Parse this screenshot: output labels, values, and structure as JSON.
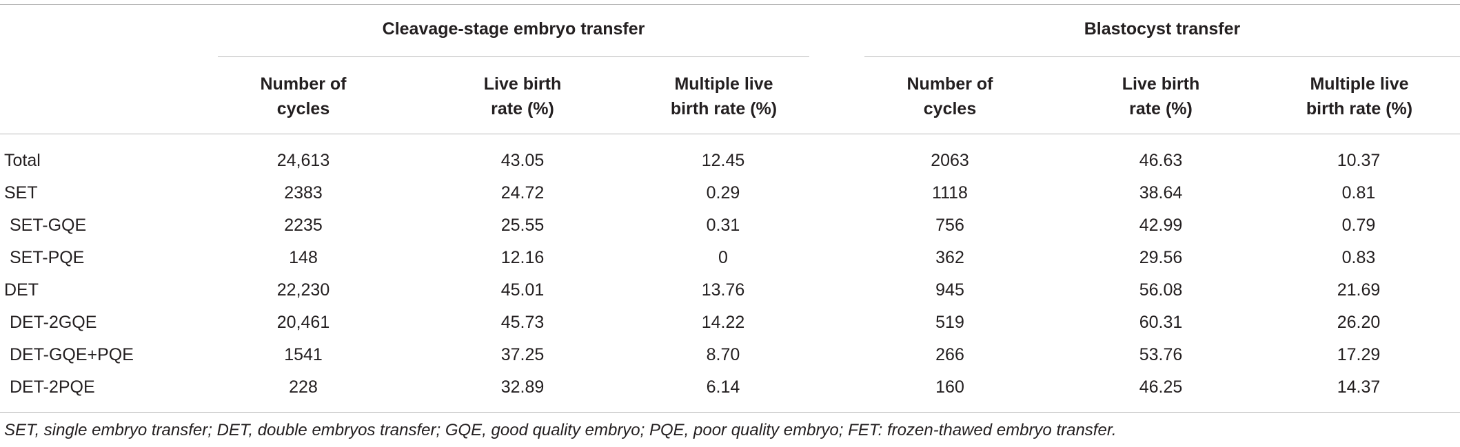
{
  "table": {
    "group_headers": {
      "cleavage": "Cleavage-stage embryo transfer",
      "blastocyst": "Blastocyst transfer"
    },
    "column_headers": [
      {
        "line1": "Number of",
        "line2": "cycles"
      },
      {
        "line1": "Live birth",
        "line2": "rate (%)"
      },
      {
        "line1": "Multiple live",
        "line2": "birth rate (%)"
      },
      {
        "line1": "Number of",
        "line2": "cycles"
      },
      {
        "line1": "Live birth",
        "line2": "rate (%)"
      },
      {
        "line1": "Multiple live",
        "line2": "birth rate (%)"
      }
    ],
    "rows": [
      {
        "label": "Total",
        "cells": [
          "24,613",
          "43.05",
          "12.45",
          "2063",
          "46.63",
          "10.37"
        ]
      },
      {
        "label": "SET",
        "cells": [
          "2383",
          "24.72",
          "0.29",
          "1118",
          "38.64",
          "0.81"
        ]
      },
      {
        "label": "SET-GQE",
        "cells": [
          "2235",
          "25.55",
          "0.31",
          "756",
          "42.99",
          "0.79"
        ]
      },
      {
        "label": "SET-PQE",
        "cells": [
          "148",
          "12.16",
          "0",
          "362",
          "29.56",
          "0.83"
        ]
      },
      {
        "label": "DET",
        "cells": [
          "22,230",
          "45.01",
          "13.76",
          "945",
          "56.08",
          "21.69"
        ]
      },
      {
        "label": "DET-2GQE",
        "cells": [
          "20,461",
          "45.73",
          "14.22",
          "519",
          "60.31",
          "26.20"
        ]
      },
      {
        "label": "DET-GQE+PQE",
        "cells": [
          "1541",
          "37.25",
          "8.70",
          "266",
          "53.76",
          "17.29"
        ]
      },
      {
        "label": "DET-2PQE",
        "cells": [
          "228",
          "32.89",
          "6.14",
          "160",
          "46.25",
          "14.37"
        ]
      }
    ],
    "footnote": "SET, single embryo transfer; DET, double embryos transfer; GQE, good quality embryo; PQE, poor quality embryo; FET: frozen-thawed embryo transfer."
  }
}
